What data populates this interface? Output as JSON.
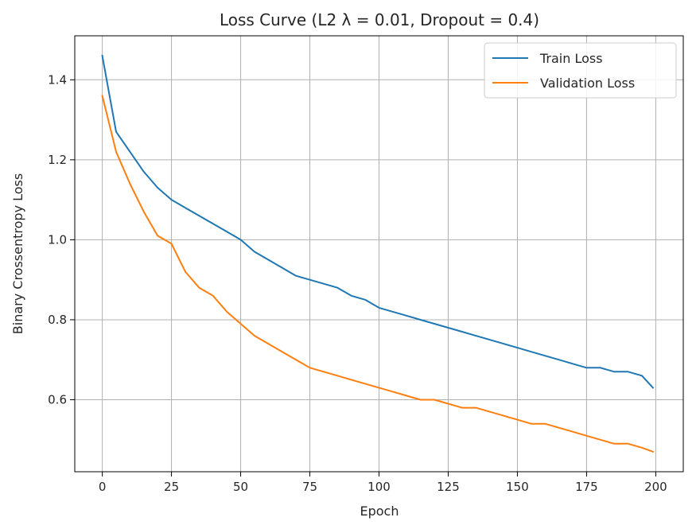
{
  "chart_data": {
    "type": "line",
    "title": "Loss Curve (L2 λ = 0.01, Dropout = 0.4)",
    "xlabel": "Epoch",
    "ylabel": "Binary Crossentropy Loss",
    "xlim": [
      -9.95,
      209.95
    ],
    "ylim": [
      0.42,
      1.51
    ],
    "x_ticks": [
      0,
      25,
      50,
      75,
      100,
      125,
      150,
      175,
      200
    ],
    "y_ticks": [
      0.6,
      0.8,
      1.0,
      1.2,
      1.4
    ],
    "x_tick_labels": [
      "0",
      "25",
      "50",
      "75",
      "100",
      "125",
      "150",
      "175",
      "200"
    ],
    "y_tick_labels": [
      "0.6",
      "0.8",
      "1.0",
      "1.2",
      "1.4"
    ],
    "grid": true,
    "legend_position": "top-right",
    "x": [
      0,
      5,
      10,
      15,
      20,
      25,
      30,
      35,
      40,
      45,
      50,
      55,
      60,
      65,
      70,
      75,
      80,
      85,
      90,
      95,
      100,
      105,
      110,
      115,
      120,
      125,
      130,
      135,
      140,
      145,
      150,
      155,
      160,
      165,
      170,
      175,
      180,
      185,
      190,
      195,
      199
    ],
    "series": [
      {
        "name": "Train Loss",
        "color": "#1f77b4",
        "values": [
          1.46,
          1.27,
          1.22,
          1.17,
          1.13,
          1.1,
          1.08,
          1.06,
          1.04,
          1.02,
          1.0,
          0.97,
          0.95,
          0.93,
          0.91,
          0.9,
          0.89,
          0.88,
          0.86,
          0.85,
          0.83,
          0.82,
          0.81,
          0.8,
          0.79,
          0.78,
          0.77,
          0.76,
          0.75,
          0.74,
          0.73,
          0.72,
          0.71,
          0.7,
          0.69,
          0.68,
          0.68,
          0.67,
          0.67,
          0.66,
          0.63
        ]
      },
      {
        "name": "Validation Loss",
        "color": "#ff7f0e",
        "values": [
          1.36,
          1.22,
          1.14,
          1.07,
          1.01,
          0.99,
          0.92,
          0.88,
          0.86,
          0.82,
          0.79,
          0.76,
          0.74,
          0.72,
          0.7,
          0.68,
          0.67,
          0.66,
          0.65,
          0.64,
          0.63,
          0.62,
          0.61,
          0.6,
          0.6,
          0.59,
          0.58,
          0.58,
          0.57,
          0.56,
          0.55,
          0.54,
          0.54,
          0.53,
          0.52,
          0.51,
          0.5,
          0.49,
          0.49,
          0.48,
          0.47
        ]
      }
    ]
  }
}
